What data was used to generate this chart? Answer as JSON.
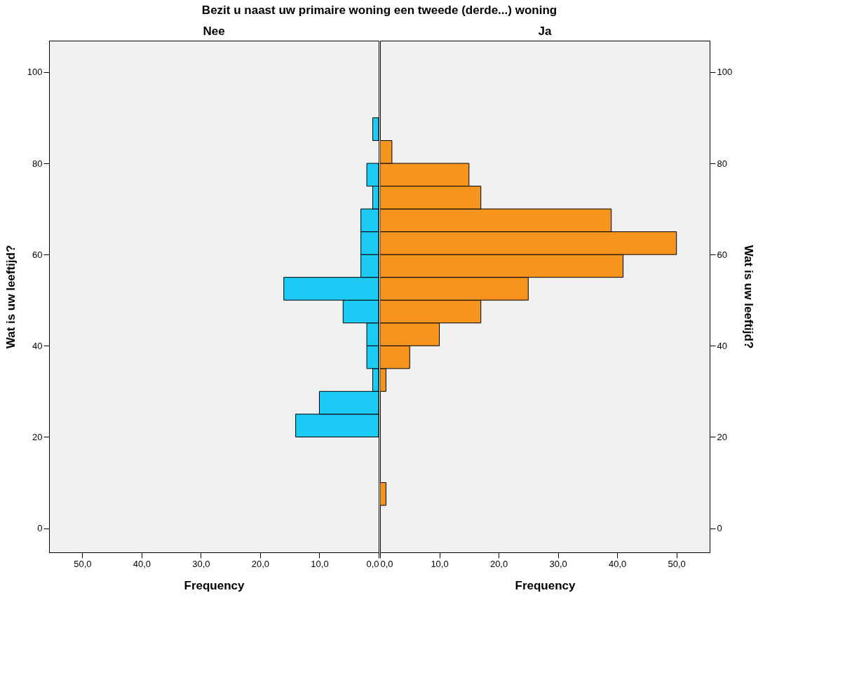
{
  "chart_data": [
    {
      "type": "histogram",
      "title": "Bezit u naast uw primaire woning een tweede (derde...) woning",
      "subtitle": "Nee",
      "orientation": "horizontal",
      "xlabel": "Frequency",
      "ylabel": "Wat is uw leeftijd?",
      "bins": [
        5,
        10,
        15,
        20,
        25,
        30,
        35,
        40,
        45,
        50,
        55,
        60,
        65,
        70,
        75,
        80,
        85,
        90
      ],
      "values": [
        null,
        null,
        null,
        14,
        10,
        1,
        2,
        2,
        6,
        16,
        3,
        3,
        3,
        1,
        2,
        null,
        1
      ],
      "color": "#1ccbf5",
      "xlim": [
        55.6,
        0
      ],
      "ylim": [
        -5.3,
        106.9
      ],
      "xticks": [
        {
          "value": 50,
          "label": "50,0"
        },
        {
          "value": 40,
          "label": "40,0"
        },
        {
          "value": 30,
          "label": "30,0"
        },
        {
          "value": 20,
          "label": "20,0"
        },
        {
          "value": 10,
          "label": "10,0"
        },
        {
          "value": 0,
          "label": "0,0"
        }
      ],
      "yticks": [
        0,
        20,
        40,
        60,
        80,
        100
      ],
      "grid": false
    },
    {
      "type": "histogram",
      "subtitle": "Ja",
      "orientation": "horizontal",
      "xlabel": "Frequency",
      "ylabel": "Wat is uw leeftijd?",
      "bins": [
        5,
        10,
        15,
        20,
        25,
        30,
        35,
        40,
        45,
        50,
        55,
        60,
        65,
        70,
        75,
        80,
        85,
        90
      ],
      "values": [
        1,
        null,
        null,
        null,
        null,
        1,
        5,
        10,
        17,
        25,
        41,
        50,
        39,
        17,
        15,
        2,
        null
      ],
      "color": "#f7941d",
      "xlim": [
        0,
        55.6
      ],
      "ylim": [
        -5.3,
        106.9
      ],
      "xticks": [
        {
          "value": 0,
          "label": "0,0"
        },
        {
          "value": 10,
          "label": "10,0"
        },
        {
          "value": 20,
          "label": "20,0"
        },
        {
          "value": 30,
          "label": "30,0"
        },
        {
          "value": 40,
          "label": "40,0"
        },
        {
          "value": 50,
          "label": "50,0"
        }
      ],
      "yticks": [
        0,
        20,
        40,
        60,
        80,
        100
      ],
      "grid": false
    }
  ]
}
